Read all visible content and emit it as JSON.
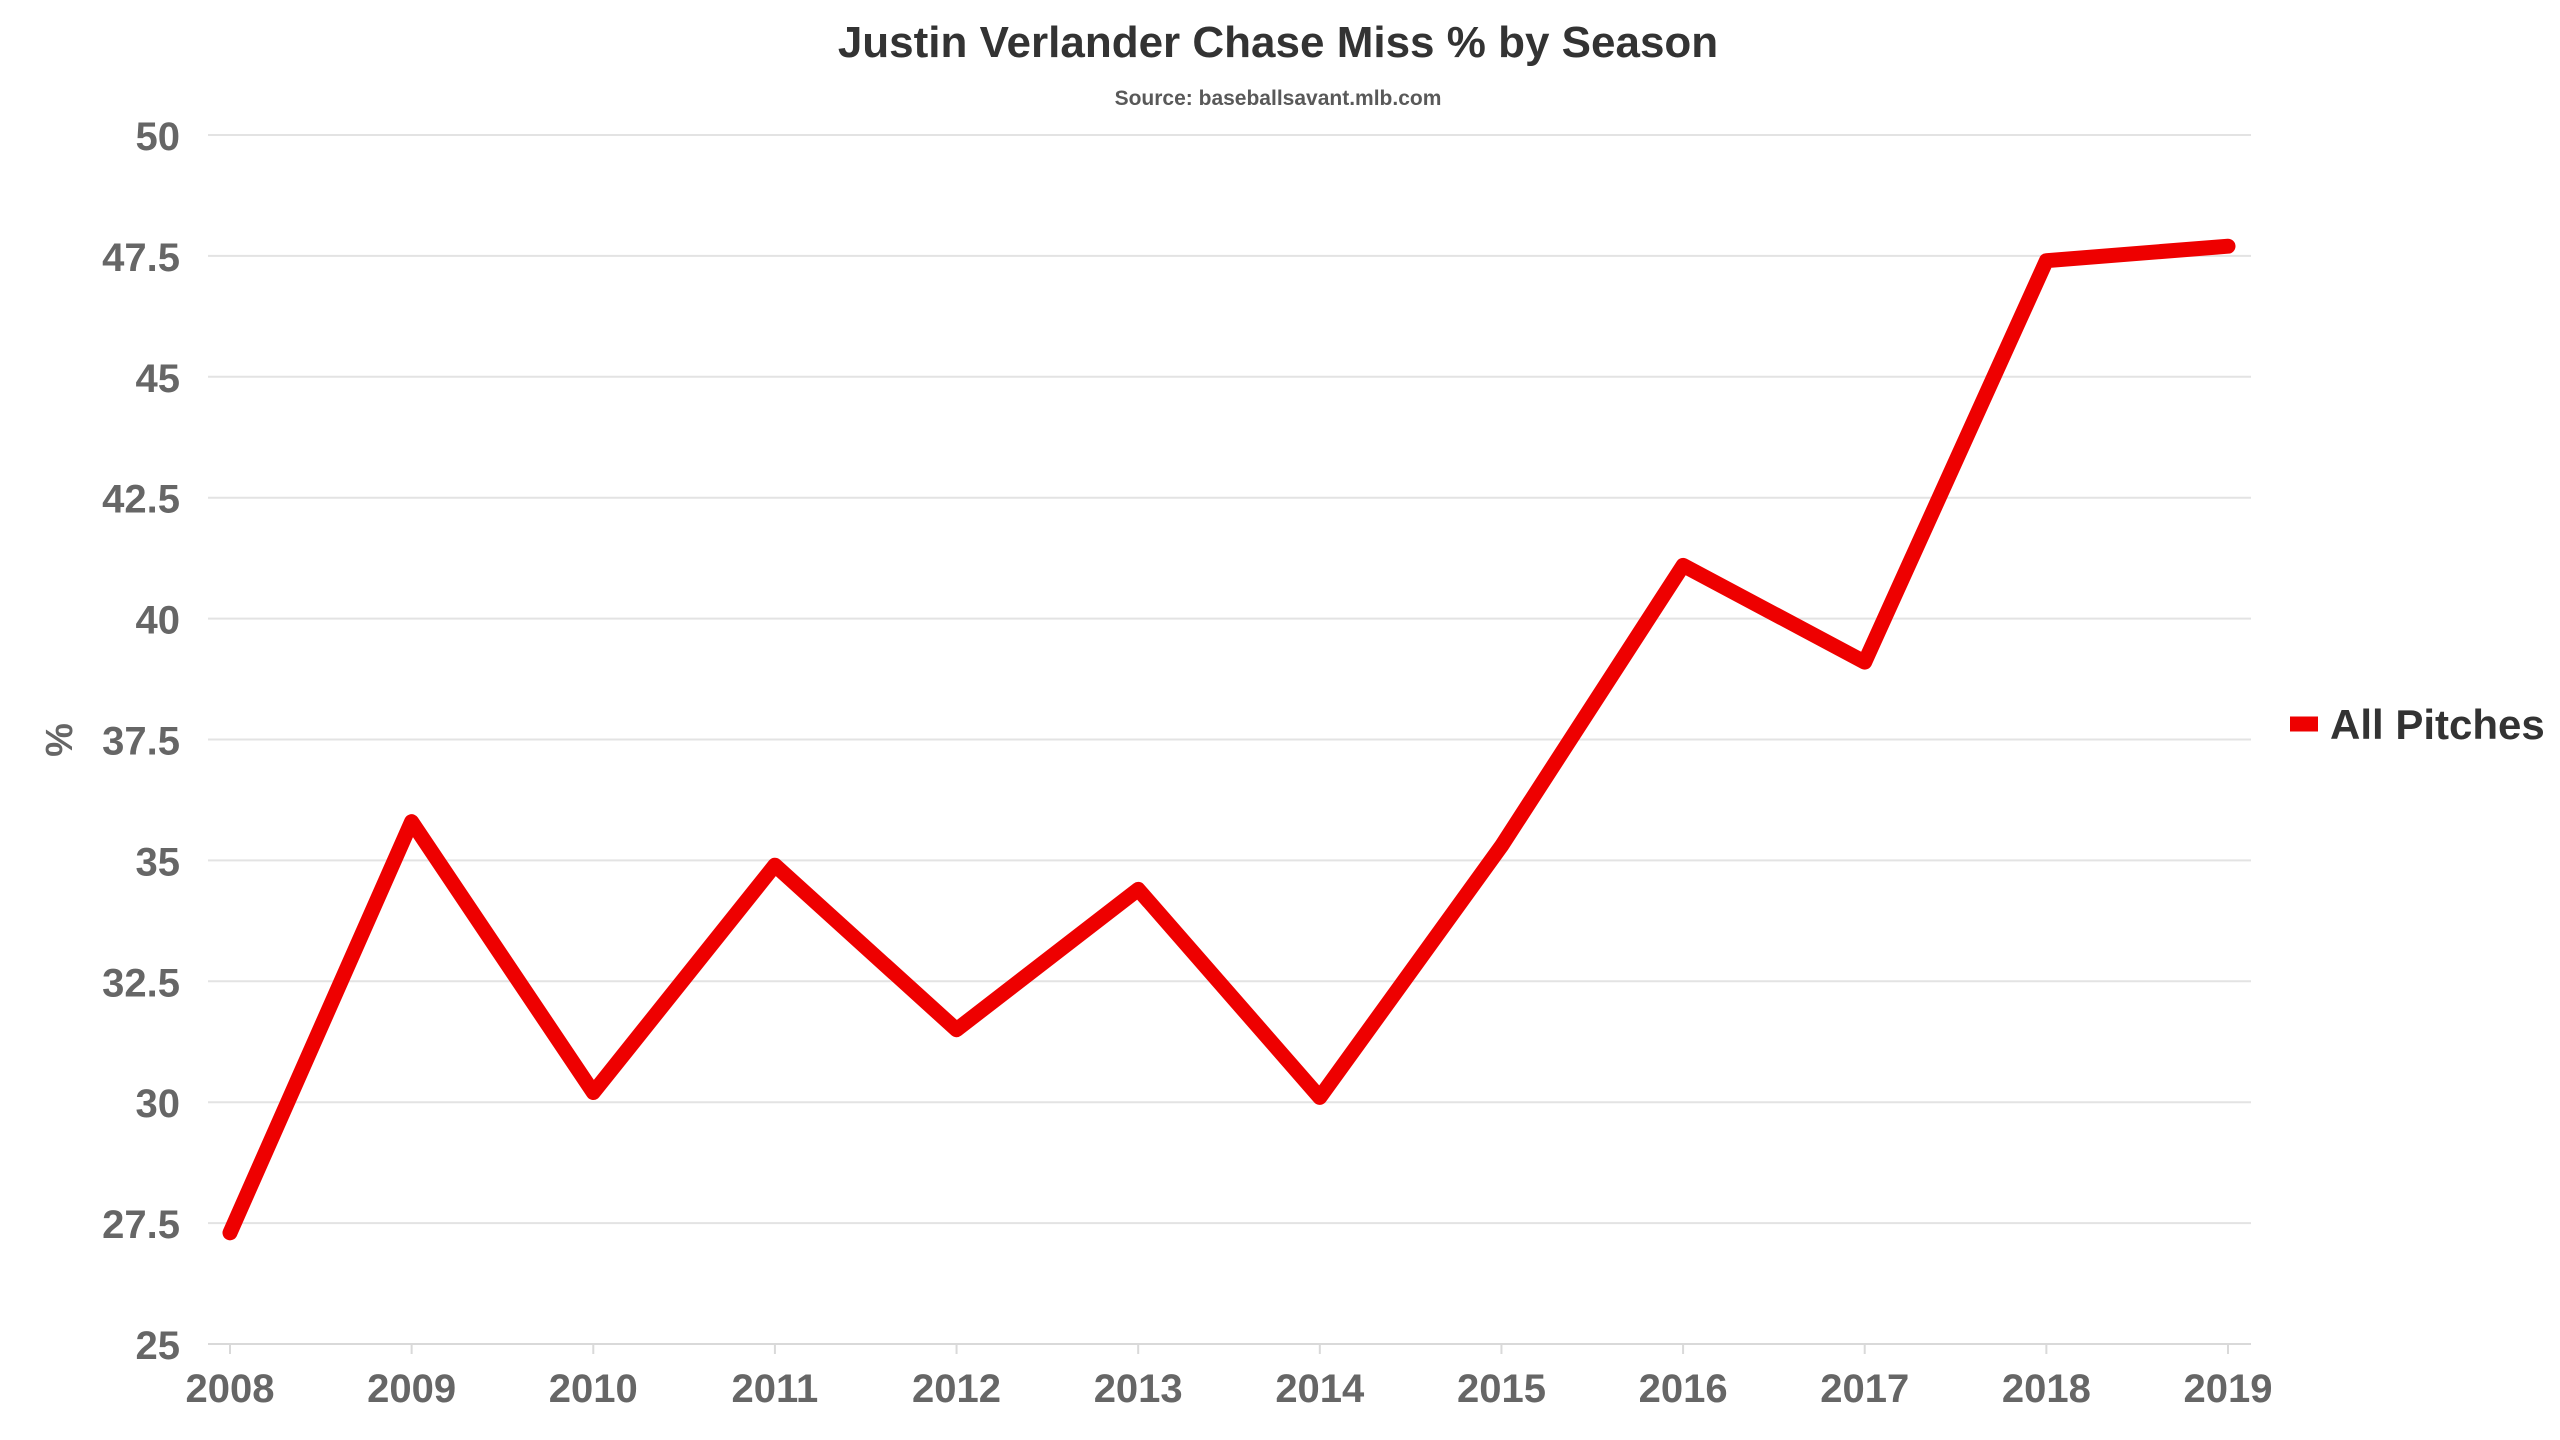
{
  "chart_data": {
    "type": "line",
    "title": "Justin Verlander Chase Miss % by Season",
    "subtitle": "Source: baseballsavant.mlb.com",
    "xlabel": "",
    "ylabel": "%",
    "categories": [
      "2008",
      "2009",
      "2010",
      "2011",
      "2012",
      "2013",
      "2014",
      "2015",
      "2016",
      "2017",
      "2018",
      "2019"
    ],
    "yticks": [
      "25",
      "27.5",
      "30",
      "32.5",
      "35",
      "37.5",
      "40",
      "42.5",
      "45",
      "47.5",
      "50"
    ],
    "ylim": [
      25,
      50
    ],
    "grid": true,
    "legend_position": "right",
    "series": [
      {
        "name": "All Pitches",
        "color": "#ee0000",
        "values": [
          27.3,
          35.8,
          30.2,
          34.9,
          31.5,
          34.4,
          30.1,
          35.3,
          41.1,
          39.1,
          47.4,
          47.7
        ]
      }
    ]
  }
}
